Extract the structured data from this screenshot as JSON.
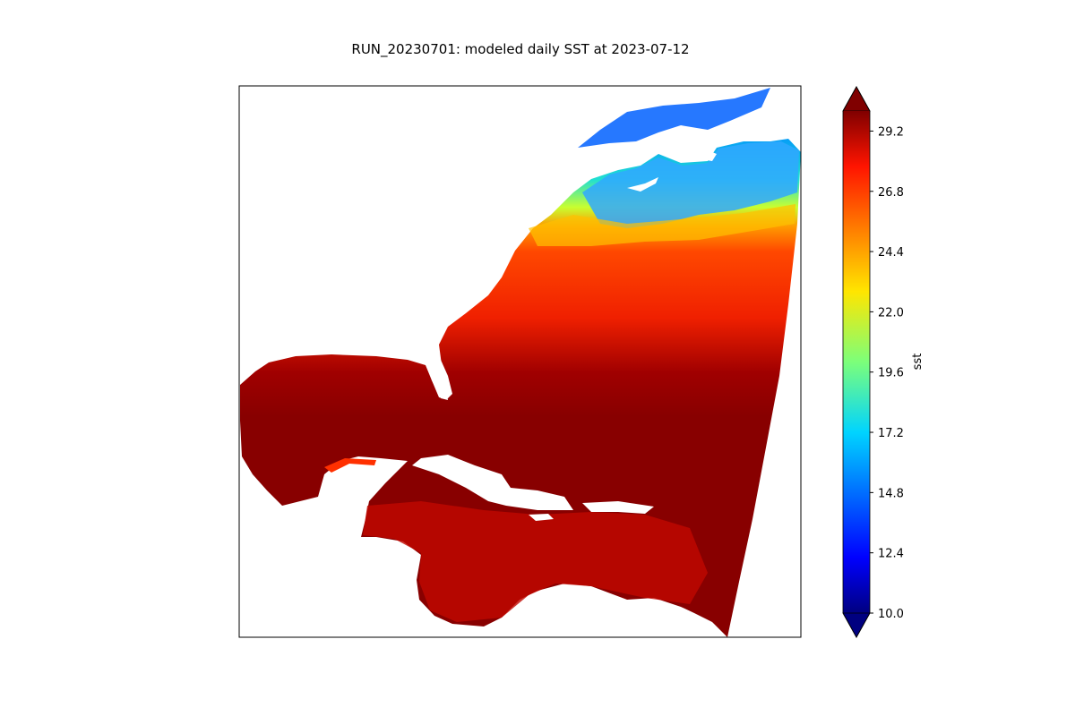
{
  "title": "RUN_20230701: modeled daily SST at 2023-07-12",
  "colorbar": {
    "label": "sst",
    "colormap": "jet",
    "vmin": 10.0,
    "vmax": 30.0,
    "extend": "both",
    "ticks": [
      "10.0",
      "12.4",
      "14.8",
      "17.2",
      "19.6",
      "22.0",
      "24.4",
      "26.8",
      "29.2"
    ]
  },
  "map": {
    "field": "sea surface temperature",
    "land_color": "#ffffff",
    "colors": {
      "cold": "#0000c8",
      "cool": "#00c8ff",
      "mid": "#e6ff14",
      "warm": "#ff7800",
      "hot": "#e81400",
      "hottest": "#800000"
    }
  }
}
